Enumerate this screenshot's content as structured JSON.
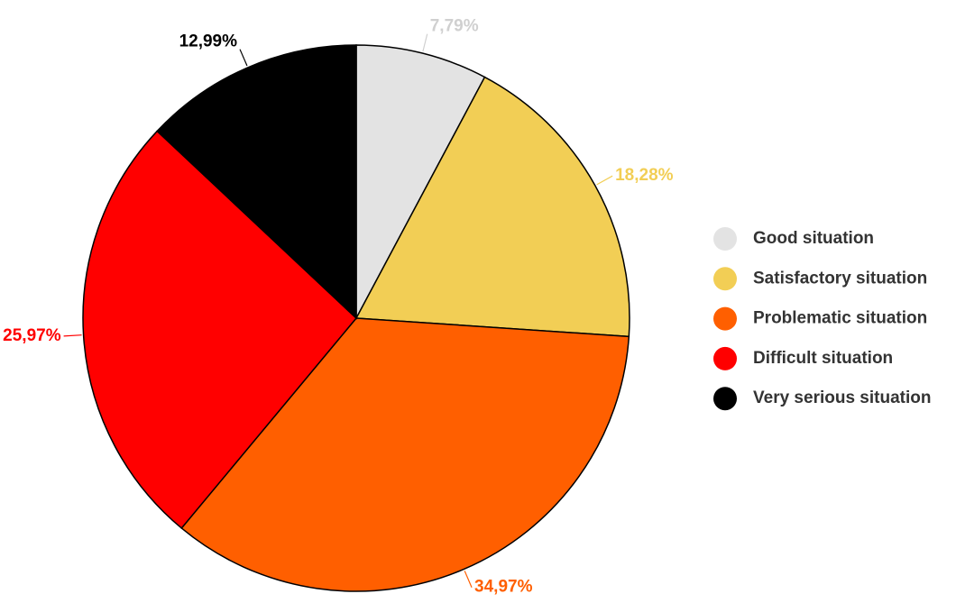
{
  "chart_data": {
    "type": "pie",
    "categories": [
      "Good situation",
      "Satisfactory situation",
      "Problematic situation",
      "Difficult situation",
      "Very serious situation"
    ],
    "values": [
      7.79,
      18.28,
      34.97,
      25.97,
      12.99
    ],
    "value_labels": [
      "7,79%",
      "18,28%",
      "34,97%",
      "25,97%",
      "12,99%"
    ],
    "colors": [
      "#e3e3e3",
      "#f2ce55",
      "#ff5f00",
      "#ff0000",
      "#000000"
    ],
    "legend": "right"
  }
}
